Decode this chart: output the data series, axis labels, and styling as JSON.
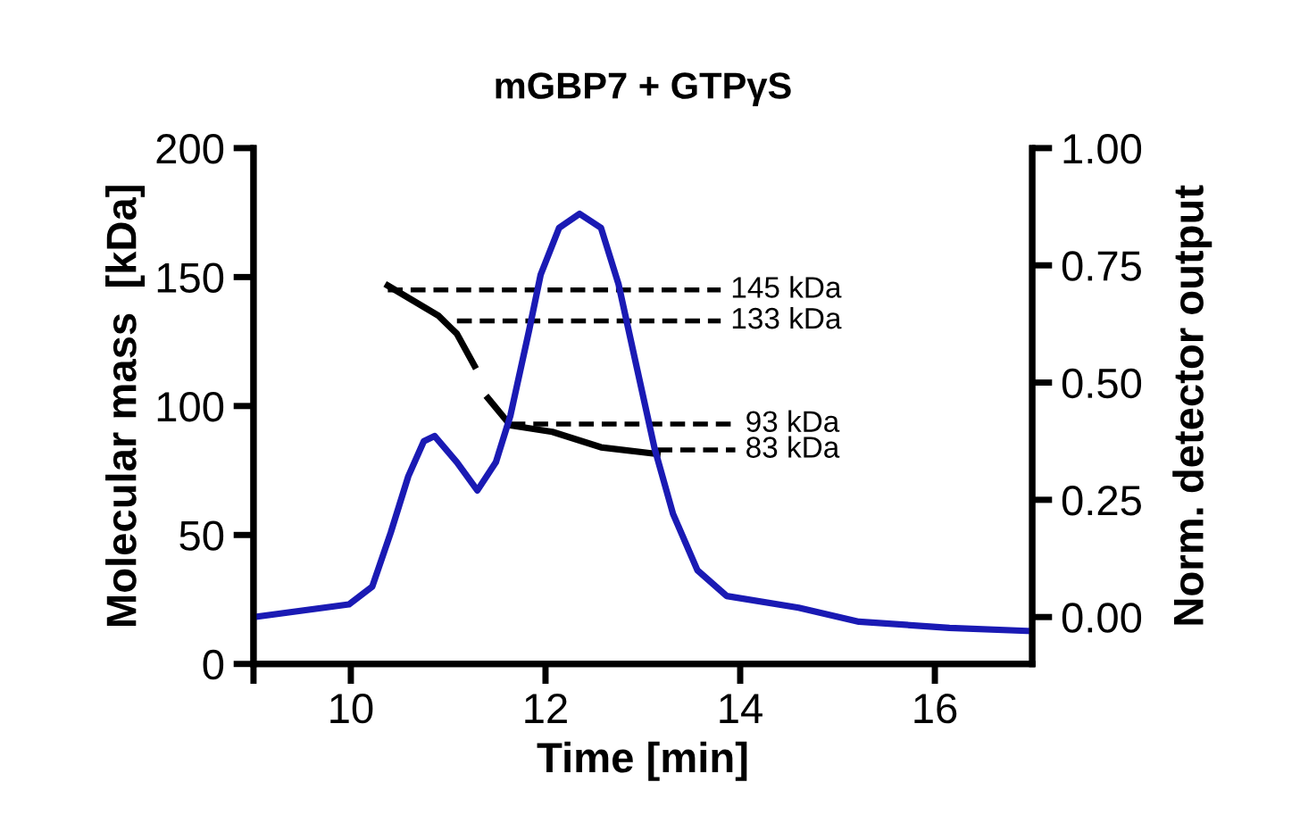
{
  "chart_data": {
    "type": "line",
    "title": "mGBP7 + GTPγS",
    "xlabel": "Time [min]",
    "ylabel": "Molecular mass  [kDa]",
    "y2label": "Norm. detector output",
    "xlim": [
      9,
      17
    ],
    "xticks": [
      {
        "value": 9,
        "label": null
      },
      10,
      12,
      14,
      16
    ],
    "ylim": [
      0,
      200
    ],
    "yticks": [
      0,
      50,
      100,
      150,
      200
    ],
    "y2lim": [
      -0.1,
      1.0
    ],
    "y2ticks": [
      {
        "value": 0,
        "label": "0.00"
      },
      {
        "value": 0.25,
        "label": "0.25"
      },
      {
        "value": 0.5,
        "label": "0.50"
      },
      {
        "value": 0.75,
        "label": "0.75"
      },
      {
        "value": 1,
        "label": "1.00"
      }
    ],
    "grid": false,
    "legend": false,
    "series": [
      {
        "axis": "y2",
        "color": "#1a1ab4",
        "x": [
          9.0,
          9.98,
          10.22,
          10.41,
          10.59,
          10.75,
          10.86,
          11.09,
          11.3,
          11.49,
          11.64,
          11.83,
          11.95,
          12.14,
          12.35,
          12.57,
          12.75,
          12.94,
          13.12,
          13.31,
          13.56,
          13.86,
          14.6,
          15.22,
          16.15,
          17.0
        ],
        "values": [
          0.0,
          0.027,
          0.065,
          0.18,
          0.3,
          0.375,
          0.386,
          0.33,
          0.27,
          0.33,
          0.43,
          0.61,
          0.73,
          0.83,
          0.86,
          0.83,
          0.71,
          0.53,
          0.36,
          0.22,
          0.1,
          0.045,
          0.02,
          -0.01,
          -0.023,
          -0.03
        ]
      },
      {
        "color": "#000000",
        "x": [
          10.38,
          10.9,
          11.09,
          11.27,
          11.34,
          11.41,
          11.64,
          12.07,
          12.57,
          13.15
        ],
        "values": [
          146.7,
          135,
          128,
          115.6,
          null,
          103,
          92.5,
          90,
          84,
          81.4
        ]
      },
      {
        "color": "#000000",
        "line_style": "dashed",
        "x": [
          10.38,
          13.8
        ],
        "values": [
          145,
          145
        ],
        "value_labels": [
          null,
          "145 kDa"
        ]
      },
      {
        "color": "#000000",
        "line_style": "dashed",
        "x": [
          11.09,
          13.8
        ],
        "values": [
          133,
          133
        ],
        "value_labels": [
          null,
          "133 kDa"
        ]
      },
      {
        "color": "#000000",
        "line_style": "dashed",
        "x": [
          11.64,
          13.95
        ],
        "values": [
          93,
          93
        ],
        "value_labels": [
          null,
          "93 kDa"
        ]
      },
      {
        "color": "#000000",
        "line_style": "dashed",
        "x": [
          13.15,
          13.95
        ],
        "values": [
          83,
          83
        ],
        "value_labels": [
          null,
          "83 kDa"
        ]
      }
    ]
  }
}
